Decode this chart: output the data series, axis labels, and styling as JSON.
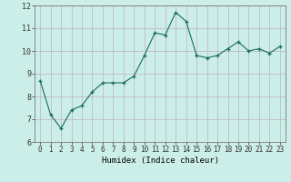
{
  "title": "",
  "xlabel": "Humidex (Indice chaleur)",
  "bg_color": "#cceee8",
  "grid_color": "#c0b0c0",
  "line_color": "#1a6b5a",
  "marker_color": "#1a6b5a",
  "xlim": [
    -0.5,
    23.5
  ],
  "ylim": [
    6,
    12
  ],
  "yticks": [
    6,
    7,
    8,
    9,
    10,
    11,
    12
  ],
  "xticks": [
    0,
    1,
    2,
    3,
    4,
    5,
    6,
    7,
    8,
    9,
    10,
    11,
    12,
    13,
    14,
    15,
    16,
    17,
    18,
    19,
    20,
    21,
    22,
    23
  ],
  "x": [
    0,
    1,
    2,
    3,
    4,
    5,
    6,
    7,
    8,
    9,
    10,
    11,
    12,
    13,
    14,
    15,
    16,
    17,
    18,
    19,
    20,
    21,
    22,
    23
  ],
  "y": [
    8.7,
    7.2,
    6.6,
    7.4,
    7.6,
    8.2,
    8.6,
    8.6,
    8.6,
    8.9,
    9.8,
    10.8,
    10.7,
    11.7,
    11.3,
    9.8,
    9.7,
    9.8,
    10.1,
    10.4,
    10.0,
    10.1,
    9.9,
    10.2
  ],
  "xlabel_fontsize": 6.5,
  "tick_fontsize": 5.5
}
